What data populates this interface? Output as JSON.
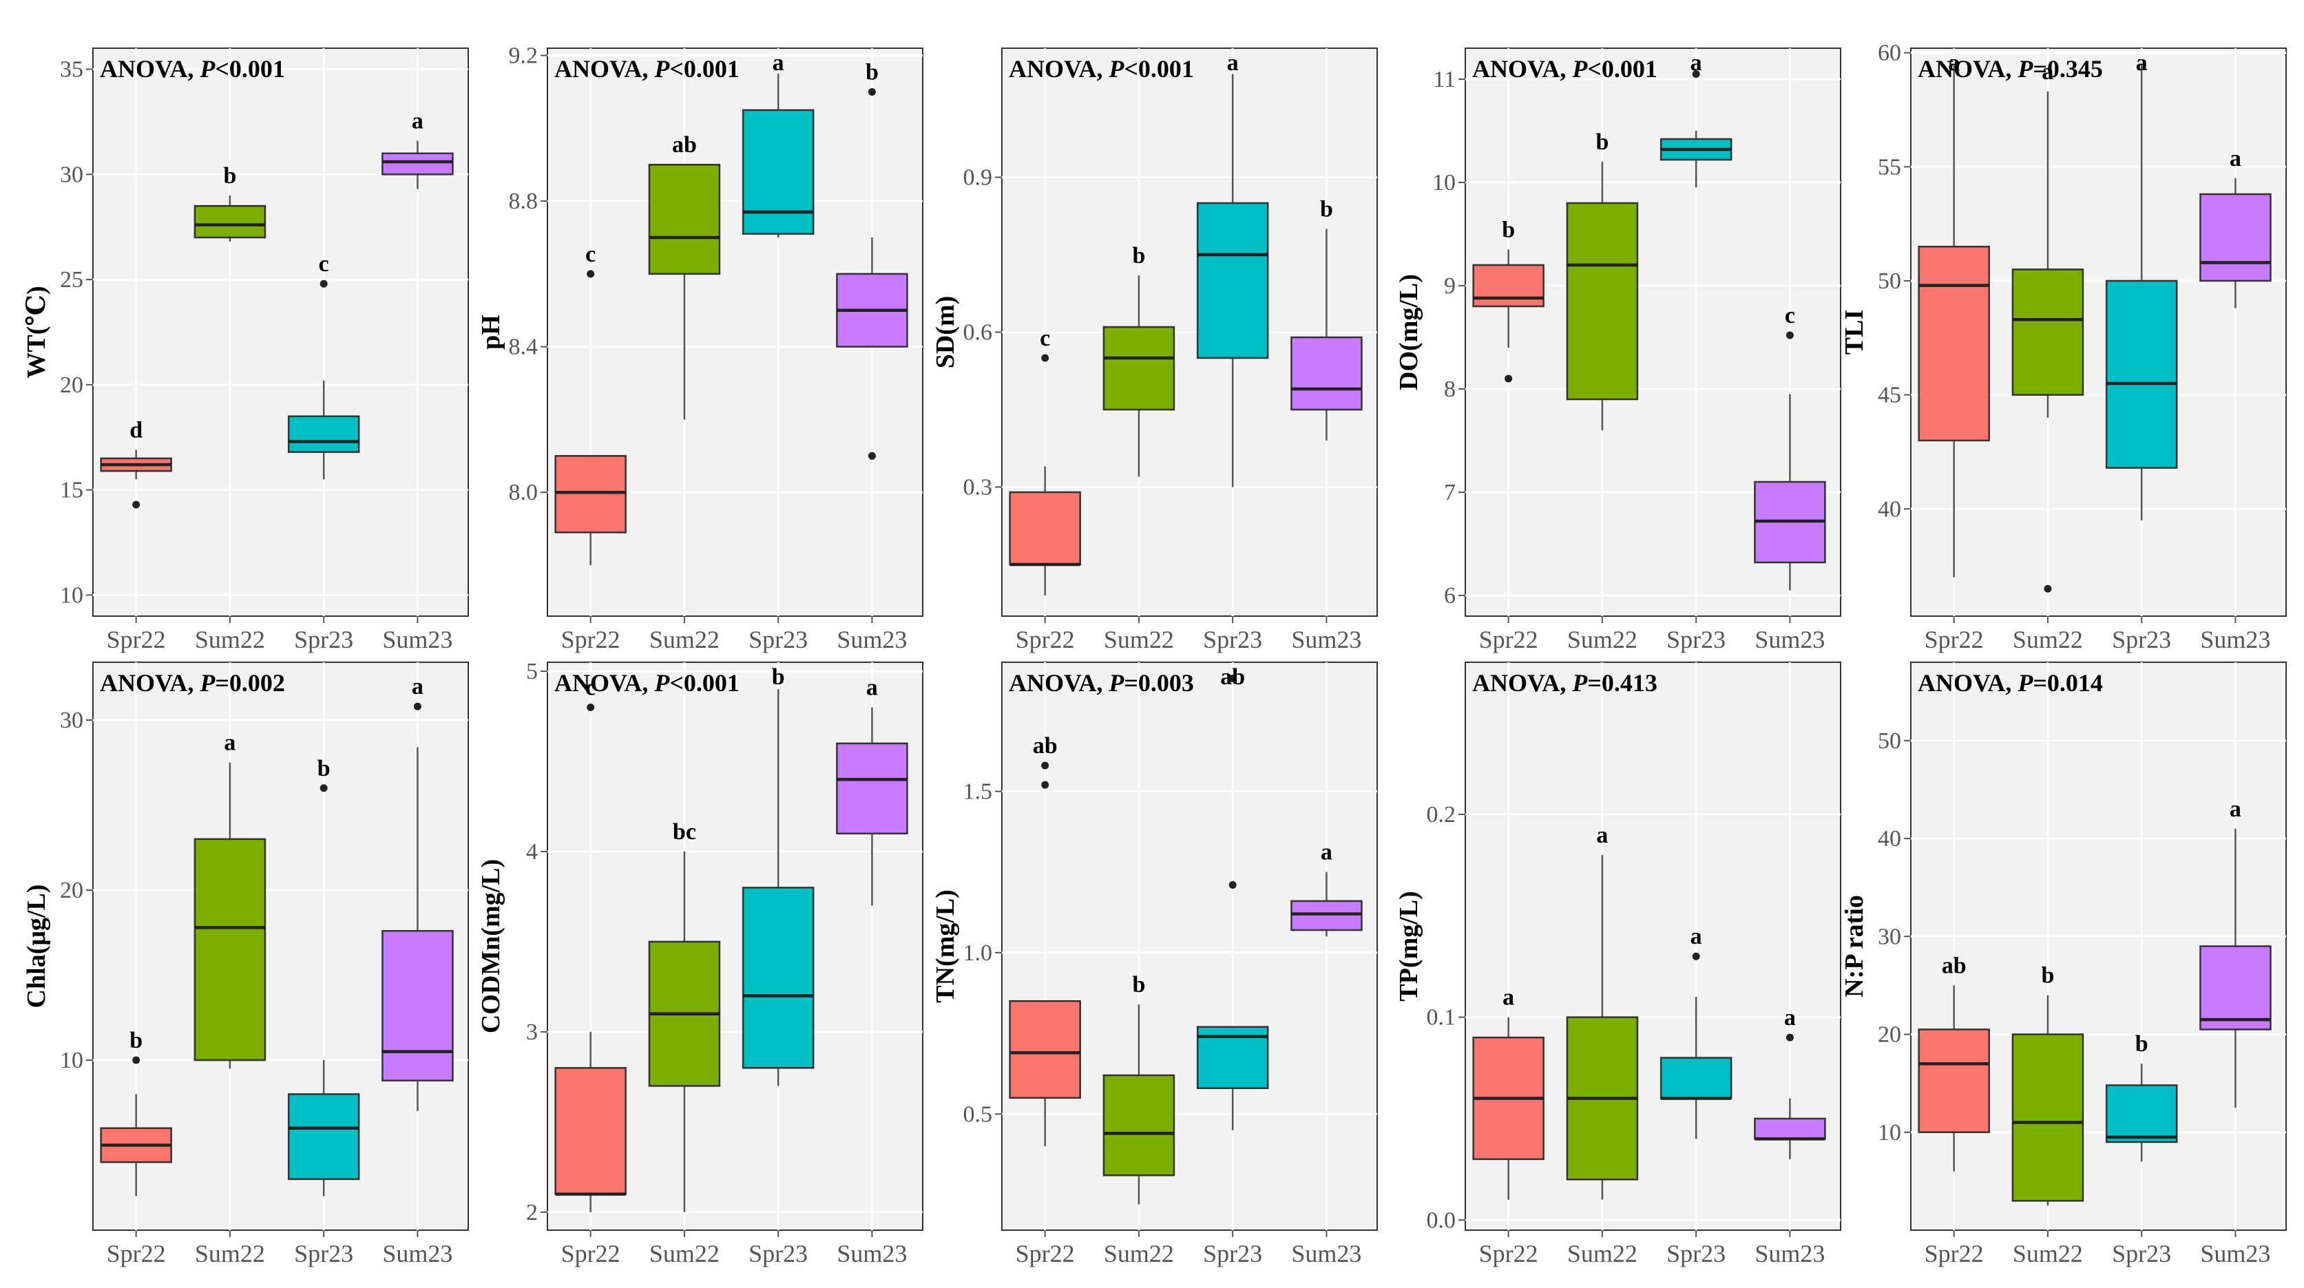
{
  "colors": {
    "Spr22": "#f8766d",
    "Sum22": "#7cae00",
    "Spr23": "#00bfc4",
    "Sum23": "#c77cff"
  },
  "chart_data": [
    {
      "type": "box",
      "title": "ANOVA, P<0.001",
      "anova_label": "ANOVA, ",
      "p_label": "P",
      "p_value": "<0.001",
      "ylabel": "WT(℃)",
      "categories": [
        "Spr22",
        "Sum22",
        "Spr23",
        "Sum23"
      ],
      "ylim": [
        9,
        36
      ],
      "yticks": [
        10,
        15,
        20,
        25,
        30,
        35
      ],
      "ytick_labels": [
        "10",
        "15",
        "20",
        "25",
        "30",
        "35"
      ],
      "boxes": [
        {
          "min": 15.5,
          "q1": 15.9,
          "median": 16.2,
          "q3": 16.5,
          "max": 16.9,
          "outliers": [
            14.3
          ],
          "letter": "d"
        },
        {
          "min": 26.8,
          "q1": 27.0,
          "median": 27.6,
          "q3": 28.5,
          "max": 29.0,
          "outliers": [],
          "letter": "b"
        },
        {
          "min": 15.5,
          "q1": 16.8,
          "median": 17.3,
          "q3": 18.5,
          "max": 20.2,
          "outliers": [
            24.8
          ],
          "letter": "c"
        },
        {
          "min": 29.3,
          "q1": 30.0,
          "median": 30.6,
          "q3": 31.0,
          "max": 31.6,
          "outliers": [],
          "letter": "a"
        }
      ]
    },
    {
      "type": "box",
      "title": "ANOVA, P<0.001",
      "anova_label": "ANOVA, ",
      "p_label": "P",
      "p_value": "<0.001",
      "ylabel": "pH",
      "categories": [
        "Spr22",
        "Sum22",
        "Spr23",
        "Sum23"
      ],
      "ylim": [
        7.66,
        9.22
      ],
      "yticks": [
        8.0,
        8.4,
        8.8,
        9.2
      ],
      "ytick_labels": [
        "8.0",
        "8.4",
        "8.8",
        "9.2"
      ],
      "boxes": [
        {
          "min": 7.8,
          "q1": 7.89,
          "median": 8.0,
          "q3": 8.1,
          "max": 8.1,
          "outliers": [
            8.6
          ],
          "letter": "c"
        },
        {
          "min": 8.2,
          "q1": 8.6,
          "median": 8.7,
          "q3": 8.9,
          "max": 8.9,
          "outliers": [],
          "letter": "ab"
        },
        {
          "min": 8.7,
          "q1": 8.71,
          "median": 8.77,
          "q3": 9.05,
          "max": 9.15,
          "outliers": [],
          "letter": "a"
        },
        {
          "min": 8.4,
          "q1": 8.4,
          "median": 8.5,
          "q3": 8.6,
          "max": 8.7,
          "outliers": [
            9.1,
            8.1
          ],
          "letter": "b"
        }
      ]
    },
    {
      "type": "box",
      "title": "ANOVA, P<0.001",
      "anova_label": "ANOVA, ",
      "p_label": "P",
      "p_value": "<0.001",
      "ylabel": "SD(m)",
      "categories": [
        "Spr22",
        "Sum22",
        "Spr23",
        "Sum23"
      ],
      "ylim": [
        0.05,
        1.15
      ],
      "yticks": [
        0.3,
        0.6,
        0.9
      ],
      "ytick_labels": [
        "0.3",
        "0.6",
        "0.9"
      ],
      "boxes": [
        {
          "min": 0.09,
          "q1": 0.15,
          "median": 0.15,
          "q3": 0.29,
          "max": 0.34,
          "outliers": [
            0.55
          ],
          "letter": "c"
        },
        {
          "min": 0.32,
          "q1": 0.45,
          "median": 0.55,
          "q3": 0.61,
          "max": 0.71,
          "outliers": [],
          "letter": "b"
        },
        {
          "min": 0.3,
          "q1": 0.55,
          "median": 0.75,
          "q3": 0.85,
          "max": 1.1,
          "outliers": [],
          "letter": "a"
        },
        {
          "min": 0.39,
          "q1": 0.45,
          "median": 0.49,
          "q3": 0.59,
          "max": 0.8,
          "outliers": [],
          "letter": "b"
        }
      ]
    },
    {
      "type": "box",
      "title": "ANOVA, P<0.001",
      "anova_label": "ANOVA, ",
      "p_label": "P",
      "p_value": "<0.001",
      "ylabel": "DO(mg/L)",
      "categories": [
        "Spr22",
        "Sum22",
        "Spr23",
        "Sum23"
      ],
      "ylim": [
        5.8,
        11.3
      ],
      "yticks": [
        6,
        7,
        8,
        9,
        10,
        11
      ],
      "ytick_labels": [
        "6",
        "7",
        "8",
        "9",
        "10",
        "11"
      ],
      "boxes": [
        {
          "min": 8.4,
          "q1": 8.8,
          "median": 8.88,
          "q3": 9.2,
          "max": 9.35,
          "outliers": [
            8.1
          ],
          "letter": "b"
        },
        {
          "min": 7.6,
          "q1": 7.9,
          "median": 9.2,
          "q3": 9.8,
          "max": 10.2,
          "outliers": [],
          "letter": "b"
        },
        {
          "min": 9.95,
          "q1": 10.22,
          "median": 10.32,
          "q3": 10.42,
          "max": 10.5,
          "outliers": [
            11.05
          ],
          "letter": "a"
        },
        {
          "min": 6.05,
          "q1": 6.32,
          "median": 6.72,
          "q3": 7.1,
          "max": 7.95,
          "outliers": [
            8.52
          ],
          "letter": "c"
        }
      ]
    },
    {
      "type": "box",
      "title": "ANOVA, P=0.345",
      "anova_label": "ANOVA, ",
      "p_label": "P",
      "p_value": "=0.345",
      "ylabel": "TLI",
      "categories": [
        "Spr22",
        "Sum22",
        "Spr23",
        "Sum23"
      ],
      "ylim": [
        35.3,
        60.2
      ],
      "yticks": [
        40,
        45,
        50,
        55,
        60
      ],
      "ytick_labels": [
        "40",
        "45",
        "50",
        "55",
        "60"
      ],
      "boxes": [
        {
          "min": 37.0,
          "q1": 43.0,
          "median": 49.8,
          "q3": 51.5,
          "max": 59.5,
          "outliers": [],
          "letter": "a"
        },
        {
          "min": 44.0,
          "q1": 45.0,
          "median": 48.3,
          "q3": 50.5,
          "max": 58.3,
          "outliers": [
            36.5
          ],
          "letter": "a"
        },
        {
          "min": 39.5,
          "q1": 41.8,
          "median": 45.5,
          "q3": 50.0,
          "max": 59.5,
          "outliers": [],
          "letter": "a"
        },
        {
          "min": 48.8,
          "q1": 50.0,
          "median": 50.8,
          "q3": 53.8,
          "max": 54.5,
          "outliers": [],
          "letter": "a"
        }
      ]
    },
    {
      "type": "box",
      "title": "ANOVA, P=0.002",
      "anova_label": "ANOVA, ",
      "p_label": "P",
      "p_value": "=0.002",
      "ylabel": "Chla(μg/L)",
      "categories": [
        "Spr22",
        "Sum22",
        "Spr23",
        "Sum23"
      ],
      "ylim": [
        0,
        33.4
      ],
      "yticks": [
        10,
        20,
        30
      ],
      "ytick_labels": [
        "10",
        "20",
        "30"
      ],
      "boxes": [
        {
          "min": 2.0,
          "q1": 4.0,
          "median": 5.0,
          "q3": 6.0,
          "max": 8.0,
          "outliers": [
            10.0
          ],
          "letter": "b"
        },
        {
          "min": 9.5,
          "q1": 10.0,
          "median": 17.8,
          "q3": 23.0,
          "max": 27.5,
          "outliers": [],
          "letter": "a"
        },
        {
          "min": 2.0,
          "q1": 3.0,
          "median": 6.0,
          "q3": 8.0,
          "max": 10.0,
          "outliers": [
            26.0
          ],
          "letter": "b"
        },
        {
          "min": 7.0,
          "q1": 8.8,
          "median": 10.5,
          "q3": 17.6,
          "max": 28.4,
          "outliers": [
            30.8
          ],
          "letter": "a"
        }
      ]
    },
    {
      "type": "box",
      "title": "ANOVA, P<0.001",
      "anova_label": "ANOVA, ",
      "p_label": "P",
      "p_value": "<0.001",
      "ylabel": "CODMn(mg/L)",
      "categories": [
        "Spr22",
        "Sum22",
        "Spr23",
        "Sum23"
      ],
      "ylim": [
        1.9,
        5.05
      ],
      "yticks": [
        2,
        3,
        4,
        5
      ],
      "ytick_labels": [
        "2",
        "3",
        "4",
        "5"
      ],
      "boxes": [
        {
          "min": 2.0,
          "q1": 2.1,
          "median": 2.1,
          "q3": 2.8,
          "max": 3.0,
          "outliers": [
            4.8
          ],
          "letter": "c"
        },
        {
          "min": 2.0,
          "q1": 2.7,
          "median": 3.1,
          "q3": 3.5,
          "max": 4.0,
          "outliers": [],
          "letter": "bc"
        },
        {
          "min": 2.7,
          "q1": 2.8,
          "median": 3.2,
          "q3": 3.8,
          "max": 4.9,
          "outliers": [],
          "letter": "b"
        },
        {
          "min": 3.7,
          "q1": 4.1,
          "median": 4.4,
          "q3": 4.6,
          "max": 4.8,
          "outliers": [],
          "letter": "a"
        }
      ]
    },
    {
      "type": "box",
      "title": "ANOVA, P=0.003",
      "anova_label": "ANOVA, ",
      "p_label": "P",
      "p_value": "=0.003",
      "ylabel": "TN(mg/L)",
      "categories": [
        "Spr22",
        "Sum22",
        "Spr23",
        "Sum23"
      ],
      "ylim": [
        0.14,
        1.9
      ],
      "yticks": [
        0.5,
        1.0,
        1.5
      ],
      "ytick_labels": [
        "0.5",
        "1.0",
        "1.5"
      ],
      "boxes": [
        {
          "min": 0.4,
          "q1": 0.55,
          "median": 0.69,
          "q3": 0.85,
          "max": 0.85,
          "outliers": [
            1.58,
            1.52
          ],
          "letter": "ab"
        },
        {
          "min": 0.22,
          "q1": 0.31,
          "median": 0.44,
          "q3": 0.62,
          "max": 0.84,
          "outliers": [],
          "letter": "b"
        },
        {
          "min": 0.45,
          "q1": 0.58,
          "median": 0.74,
          "q3": 0.77,
          "max": 0.77,
          "outliers": [
            1.85,
            1.21
          ],
          "letter": "ab"
        },
        {
          "min": 1.05,
          "q1": 1.07,
          "median": 1.12,
          "q3": 1.16,
          "max": 1.25,
          "outliers": [],
          "letter": "a"
        }
      ]
    },
    {
      "type": "box",
      "title": "ANOVA, P=0.413",
      "anova_label": "ANOVA, ",
      "p_label": "P",
      "p_value": "=0.413",
      "ylabel": "TP(mg/L)",
      "categories": [
        "Spr22",
        "Sum22",
        "Spr23",
        "Sum23"
      ],
      "ylim": [
        -0.005,
        0.275
      ],
      "yticks": [
        0.0,
        0.1,
        0.2
      ],
      "ytick_labels": [
        "0.0",
        "0.1",
        "0.2"
      ],
      "boxes": [
        {
          "min": 0.01,
          "q1": 0.03,
          "median": 0.06,
          "q3": 0.09,
          "max": 0.1,
          "outliers": [],
          "letter": "a"
        },
        {
          "min": 0.01,
          "q1": 0.02,
          "median": 0.06,
          "q3": 0.1,
          "max": 0.18,
          "outliers": [],
          "letter": "a"
        },
        {
          "min": 0.04,
          "q1": 0.06,
          "median": 0.06,
          "q3": 0.08,
          "max": 0.11,
          "outliers": [
            0.13
          ],
          "letter": "a"
        },
        {
          "min": 0.03,
          "q1": 0.04,
          "median": 0.04,
          "q3": 0.05,
          "max": 0.06,
          "outliers": [
            0.09
          ],
          "letter": "a"
        }
      ]
    },
    {
      "type": "box",
      "title": "ANOVA, P=0.014",
      "anova_label": "ANOVA, ",
      "p_label": "P",
      "p_value": "=0.014",
      "ylabel": "N:P ratio",
      "categories": [
        "Spr22",
        "Sum22",
        "Spr23",
        "Sum23"
      ],
      "ylim": [
        0,
        58
      ],
      "yticks": [
        10,
        20,
        30,
        40,
        50
      ],
      "ytick_labels": [
        "10",
        "20",
        "30",
        "40",
        "50"
      ],
      "boxes": [
        {
          "min": 6.0,
          "q1": 10.0,
          "median": 17.0,
          "q3": 20.5,
          "max": 25.0,
          "outliers": [],
          "letter": "ab"
        },
        {
          "min": 2.5,
          "q1": 3.0,
          "median": 11.0,
          "q3": 20.0,
          "max": 24.0,
          "outliers": [],
          "letter": "b"
        },
        {
          "min": 7.0,
          "q1": 9.0,
          "median": 9.5,
          "q3": 14.8,
          "max": 17.0,
          "outliers": [],
          "letter": "b"
        },
        {
          "min": 12.5,
          "q1": 20.5,
          "median": 21.5,
          "q3": 29.0,
          "max": 41.0,
          "outliers": [],
          "letter": "a"
        }
      ]
    }
  ]
}
